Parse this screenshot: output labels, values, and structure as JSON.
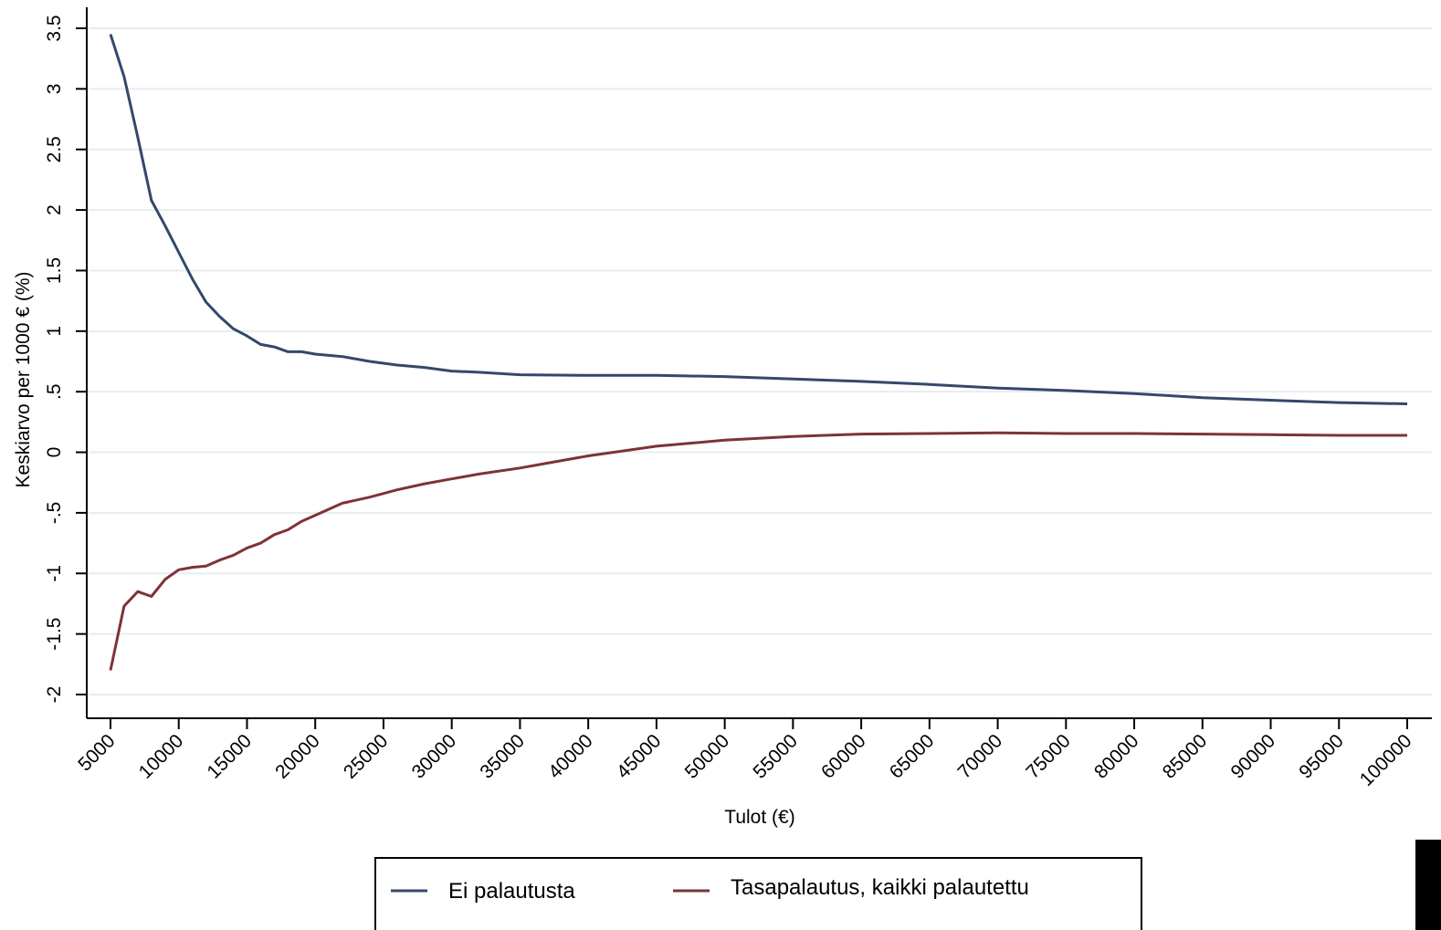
{
  "chart_data": {
    "type": "line",
    "title": "",
    "xlabel": "Tulot (€)",
    "ylabel": "Keskiarvo per 1000 € (%)",
    "xlim": [
      5000,
      100000
    ],
    "ylim": [
      -2,
      3.5
    ],
    "x_ticks": [
      5000,
      10000,
      15000,
      20000,
      25000,
      30000,
      35000,
      40000,
      45000,
      50000,
      55000,
      60000,
      65000,
      70000,
      75000,
      80000,
      85000,
      90000,
      95000,
      100000
    ],
    "x_tick_labels": [
      "5000",
      "10000",
      "15000",
      "20000",
      "25000",
      "30000",
      "35000",
      "40000",
      "45000",
      "50000",
      "55000",
      "60000",
      "65000",
      "70000",
      "75000",
      "80000",
      "85000",
      "90000",
      "95000",
      "100000"
    ],
    "y_ticks": [
      -2,
      -1.5,
      -1,
      -0.5,
      0,
      0.5,
      1,
      1.5,
      2,
      2.5,
      3,
      3.5
    ],
    "y_tick_labels": [
      "-2",
      "-1.5",
      "-1",
      "-.5",
      "0",
      ".5",
      "1",
      "1.5",
      "2",
      "2.5",
      "3",
      "3.5"
    ],
    "grid": true,
    "legend_position": "bottom",
    "x": [
      5000,
      6000,
      7000,
      8000,
      9000,
      10000,
      11000,
      12000,
      13000,
      14000,
      15000,
      16000,
      17000,
      18000,
      19000,
      20000,
      22000,
      24000,
      26000,
      28000,
      30000,
      32000,
      35000,
      40000,
      45000,
      50000,
      55000,
      60000,
      65000,
      70000,
      75000,
      80000,
      85000,
      90000,
      95000,
      100000
    ],
    "series": [
      {
        "name": "Ei palautusta",
        "color": "#34486b",
        "values": [
          3.45,
          3.1,
          2.6,
          2.08,
          1.87,
          1.65,
          1.43,
          1.24,
          1.12,
          1.02,
          0.96,
          0.89,
          0.87,
          0.83,
          0.83,
          0.81,
          0.79,
          0.75,
          0.72,
          0.7,
          0.67,
          0.66,
          0.64,
          0.635,
          0.635,
          0.625,
          0.605,
          0.585,
          0.56,
          0.53,
          0.51,
          0.485,
          0.45,
          0.43,
          0.41,
          0.4
        ]
      },
      {
        "name": "Tasapalautus, kaikki palautettu",
        "color": "#7d3337",
        "values": [
          -1.8,
          -1.27,
          -1.15,
          -1.19,
          -1.05,
          -0.97,
          -0.95,
          -0.94,
          -0.89,
          -0.85,
          -0.79,
          -0.75,
          -0.68,
          -0.64,
          -0.57,
          -0.52,
          -0.42,
          -0.37,
          -0.31,
          -0.26,
          -0.22,
          -0.18,
          -0.13,
          -0.03,
          0.05,
          0.1,
          0.13,
          0.15,
          0.155,
          0.16,
          0.155,
          0.155,
          0.15,
          0.145,
          0.14,
          0.14
        ]
      }
    ]
  }
}
